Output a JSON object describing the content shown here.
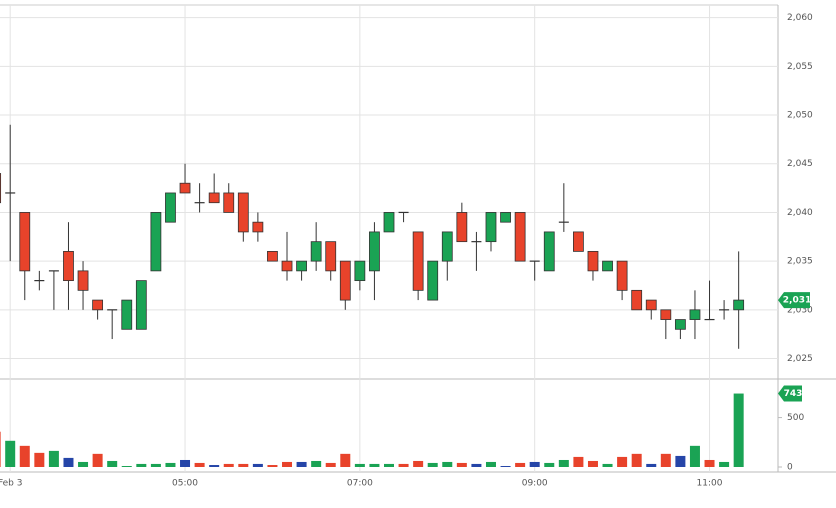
{
  "chart_data": {
    "type": "candlestick",
    "x": [
      170,
      180,
      190,
      200,
      210,
      220,
      230,
      240,
      250,
      260,
      270,
      280,
      290,
      300,
      310,
      320,
      330,
      340,
      350,
      360,
      370,
      380,
      390,
      400,
      410,
      420,
      430,
      440,
      450,
      460,
      470,
      480,
      490,
      500,
      510,
      520,
      530,
      540,
      550,
      560,
      570,
      580,
      590,
      600,
      610,
      620,
      630,
      640,
      650,
      660,
      670,
      680
    ],
    "open": [
      2044,
      2042,
      2040,
      2033,
      2034,
      2036,
      2034,
      2031,
      2030,
      2028,
      2028,
      2034,
      2039,
      2043,
      2041,
      2042,
      2042,
      2042,
      2039,
      2036,
      2035,
      2034,
      2035,
      2037,
      2035,
      2033,
      2034,
      2038,
      2040,
      2038,
      2031,
      2035,
      2040,
      2037,
      2037,
      2039,
      2040,
      2035,
      2034,
      2039,
      2038,
      2036,
      2034,
      2035,
      2032,
      2031,
      2030,
      2028,
      2029,
      2029,
      2030,
      2030
    ],
    "high": [
      2044,
      2049,
      2040,
      2034,
      2034,
      2039,
      2035,
      2031,
      2030,
      2031,
      2033,
      2040,
      2042,
      2045,
      2043,
      2044,
      2043,
      2042,
      2040,
      2036,
      2038,
      2035,
      2039,
      2037,
      2035,
      2035,
      2039,
      2040,
      2040,
      2038,
      2035,
      2038,
      2041,
      2038,
      2040,
      2040,
      2040,
      2035,
      2038,
      2043,
      2038,
      2036,
      2035,
      2035,
      2032,
      2031,
      2030,
      2029,
      2032,
      2033,
      2031,
      2036
    ],
    "low": [
      2041,
      2035,
      2031,
      2032,
      2030,
      2030,
      2030,
      2029,
      2027,
      2028,
      2028,
      2034,
      2039,
      2042,
      2040,
      2041,
      2040,
      2037,
      2037,
      2035,
      2033,
      2033,
      2034,
      2033,
      2030,
      2032,
      2031,
      2038,
      2039,
      2031,
      2031,
      2033,
      2037,
      2034,
      2036,
      2039,
      2035,
      2033,
      2034,
      2038,
      2036,
      2033,
      2034,
      2031,
      2030,
      2029,
      2027,
      2027,
      2027,
      2029,
      2029,
      2026
    ],
    "close": [
      2041,
      2042,
      2034,
      2033,
      2034,
      2033,
      2032,
      2030,
      2030,
      2031,
      2033,
      2040,
      2042,
      2042,
      2041,
      2041,
      2040,
      2038,
      2038,
      2035,
      2034,
      2035,
      2037,
      2034,
      2031,
      2035,
      2038,
      2040,
      2040,
      2032,
      2035,
      2038,
      2037,
      2037,
      2040,
      2040,
      2035,
      2035,
      2038,
      2039,
      2036,
      2034,
      2035,
      2032,
      2030,
      2030,
      2029,
      2029,
      2030,
      2029,
      2030,
      2031
    ],
    "up_color": "#1aa354",
    "down_color": "#e8432b",
    "doji_color": "#333333",
    "xlim": [
      173,
      707
    ],
    "xticks": [
      {
        "value": 180,
        "label": "Feb 3"
      },
      {
        "value": 300,
        "label": "05:00"
      },
      {
        "value": 420,
        "label": "07:00"
      },
      {
        "value": 540,
        "label": "09:00"
      },
      {
        "value": 660,
        "label": "11:00"
      }
    ],
    "ylim": [
      2023,
      2061.3
    ],
    "yticks": [
      {
        "value": 2025,
        "label": "2,025"
      },
      {
        "value": 2030,
        "label": "2,030"
      },
      {
        "value": 2035,
        "label": "2,035"
      },
      {
        "value": 2040,
        "label": "2,040"
      },
      {
        "value": 2045,
        "label": "2,045"
      },
      {
        "value": 2050,
        "label": "2,050"
      },
      {
        "value": 2055,
        "label": "2,055"
      },
      {
        "value": 2060,
        "label": "2,060"
      }
    ],
    "last_price": {
      "value": 2031,
      "label": "2,031"
    },
    "grid": true,
    "volume": {
      "values": [
        357,
        265,
        214,
        143,
        163,
        92,
        51,
        133,
        61,
        10,
        31,
        31,
        41,
        71,
        41,
        20,
        31,
        31,
        31,
        20,
        51,
        51,
        61,
        41,
        133,
        31,
        31,
        31,
        31,
        61,
        41,
        51,
        41,
        31,
        51,
        10,
        41,
        51,
        41,
        71,
        102,
        61,
        31,
        102,
        133,
        31,
        133,
        112,
        214,
        71,
        51,
        743
      ],
      "colors": [
        "#e8432b",
        "#1aa354",
        "#e8432b",
        "#e8432b",
        "#1aa354",
        "#2545a8",
        "#1aa354",
        "#e8432b",
        "#1aa354",
        "#1aa354",
        "#1aa354",
        "#1aa354",
        "#1aa354",
        "#2545a8",
        "#e8432b",
        "#2545a8",
        "#e8432b",
        "#e8432b",
        "#2545a8",
        "#e8432b",
        "#e8432b",
        "#2545a8",
        "#1aa354",
        "#e8432b",
        "#e8432b",
        "#1aa354",
        "#1aa354",
        "#1aa354",
        "#e8432b",
        "#e8432b",
        "#1aa354",
        "#1aa354",
        "#e8432b",
        "#2545a8",
        "#1aa354",
        "#2545a8",
        "#e8432b",
        "#2545a8",
        "#1aa354",
        "#1aa354",
        "#e8432b",
        "#e8432b",
        "#1aa354",
        "#e8432b",
        "#e8432b",
        "#2545a8",
        "#e8432b",
        "#2545a8",
        "#1aa354",
        "#e8432b",
        "#1aa354",
        "#1aa354"
      ],
      "ylim": [
        0,
        880
      ],
      "yticks": [
        0,
        500
      ],
      "last": 743
    }
  }
}
